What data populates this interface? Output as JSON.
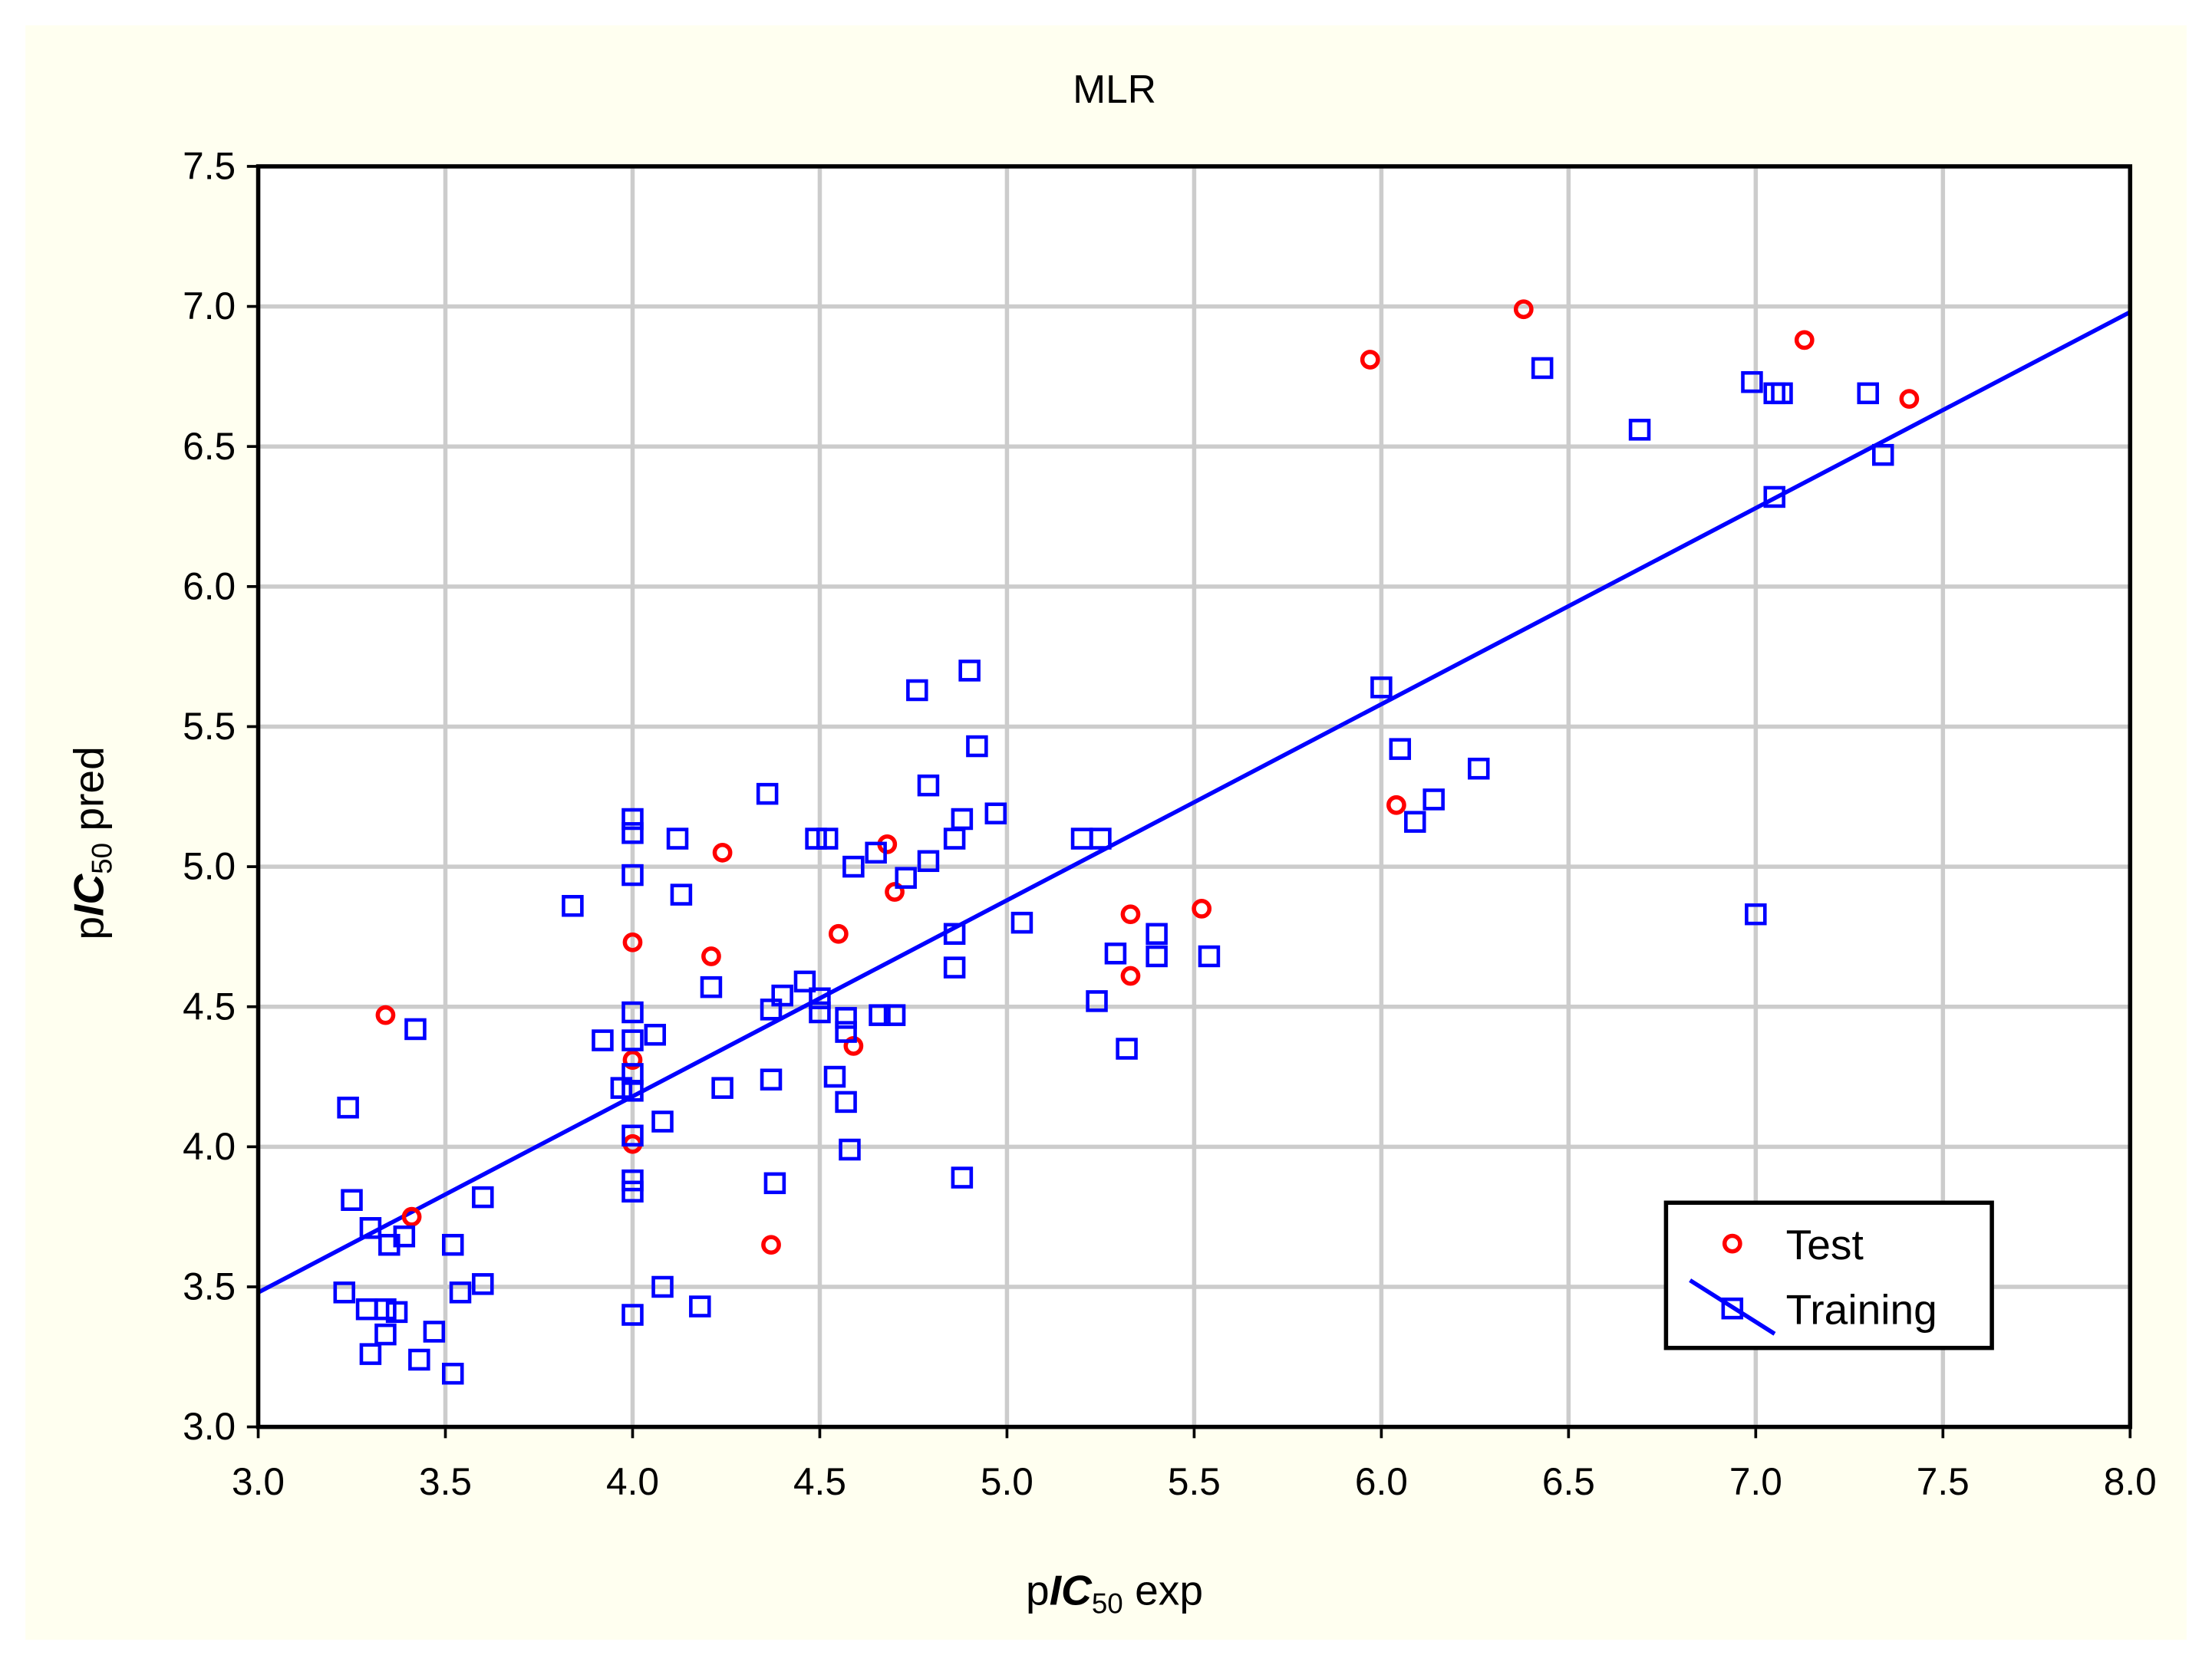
{
  "chart_data": {
    "type": "scatter",
    "title": "MLR",
    "x_label": {
      "prefix": "p",
      "italic": "IC",
      "sub": "50",
      "suffix": " exp"
    },
    "y_label": {
      "prefix": "p",
      "italic": "IC",
      "sub": "50",
      "suffix": " pred"
    },
    "xlim": [
      3.0,
      8.0
    ],
    "ylim": [
      3.0,
      7.5
    ],
    "xticks": [
      {
        "value": 3,
        "label": "3.0"
      },
      3.5,
      {
        "value": 4,
        "label": "4.0"
      },
      4.5,
      {
        "value": 5,
        "label": "5.0"
      },
      5.5,
      {
        "value": 6,
        "label": "6.0"
      },
      6.5,
      {
        "value": 7,
        "label": "7.0"
      },
      7.5,
      {
        "value": 8,
        "label": "8.0"
      }
    ],
    "yticks": [
      {
        "value": 3,
        "label": "3.0"
      },
      3.5,
      {
        "value": 4,
        "label": "4.0"
      },
      4.5,
      {
        "value": 5,
        "label": "5.0"
      },
      5.5,
      {
        "value": 6,
        "label": "6.0"
      },
      6.5,
      {
        "value": 7,
        "label": "7.0"
      },
      7.5
    ],
    "grid": true,
    "legend": "lower right",
    "series": [
      {
        "name": "Test",
        "color": "#ff0000",
        "marker": "circle",
        "x": [
          3.34,
          3.41,
          4.0,
          4.0,
          4.0,
          4.21,
          4.24,
          4.37,
          4.55,
          4.59,
          4.68,
          4.7,
          5.33,
          5.33,
          5.52,
          5.97,
          6.04,
          6.38,
          7.13,
          7.41
        ],
        "values": [
          4.47,
          3.75,
          4.73,
          4.31,
          4.01,
          4.68,
          5.05,
          3.65,
          4.76,
          4.36,
          5.08,
          4.91,
          4.83,
          4.61,
          4.85,
          6.81,
          5.22,
          6.99,
          6.88,
          6.67
        ]
      },
      {
        "name": "Training",
        "color": "#0000ff",
        "marker": "square",
        "x": [
          3.24,
          3.25,
          3.23,
          3.29,
          3.3,
          3.3,
          3.34,
          3.34,
          3.35,
          3.37,
          3.39,
          3.42,
          3.43,
          3.47,
          3.52,
          3.52,
          3.54,
          3.6,
          3.6,
          3.84,
          3.92,
          3.97,
          4.0,
          4.0,
          4.0,
          4.0,
          4.0,
          4.0,
          4.0,
          4.0,
          4.0,
          4.0,
          4.0,
          4.06,
          4.08,
          4.08,
          4.12,
          4.13,
          4.18,
          4.21,
          4.24,
          4.36,
          4.37,
          4.37,
          4.38,
          4.4,
          4.46,
          4.49,
          4.52,
          4.5,
          4.5,
          4.54,
          4.57,
          4.57,
          4.57,
          4.58,
          4.59,
          4.65,
          4.66,
          4.7,
          4.73,
          4.76,
          4.79,
          4.79,
          4.86,
          4.86,
          4.86,
          4.88,
          4.88,
          4.9,
          4.92,
          4.97,
          5.04,
          5.2,
          5.25,
          5.24,
          5.29,
          5.32,
          5.4,
          5.4,
          5.54,
          6.0,
          6.05,
          6.09,
          6.14,
          6.26,
          6.43,
          6.69,
          6.99,
          7.0,
          7.05,
          7.07,
          7.05,
          7.3,
          7.34
        ],
        "values": [
          4.14,
          3.81,
          3.48,
          3.42,
          3.71,
          3.26,
          3.33,
          3.42,
          3.65,
          3.41,
          3.68,
          4.42,
          3.24,
          3.34,
          3.65,
          3.19,
          3.48,
          3.51,
          3.82,
          4.86,
          4.38,
          4.21,
          5.17,
          5.12,
          4.97,
          4.48,
          4.38,
          4.26,
          4.2,
          4.04,
          3.88,
          3.84,
          3.4,
          4.4,
          4.09,
          3.5,
          5.1,
          4.9,
          3.43,
          4.57,
          4.21,
          5.26,
          4.49,
          4.24,
          3.87,
          4.54,
          4.59,
          5.1,
          5.1,
          4.53,
          4.48,
          4.25,
          4.46,
          4.41,
          4.16,
          3.99,
          5.0,
          5.05,
          4.47,
          4.47,
          4.96,
          5.63,
          5.29,
          5.02,
          5.1,
          4.76,
          4.64,
          5.17,
          3.89,
          5.7,
          5.43,
          5.19,
          4.8,
          5.1,
          5.1,
          4.52,
          4.69,
          4.35,
          4.76,
          4.68,
          4.68,
          5.64,
          5.42,
          5.16,
          5.24,
          5.35,
          6.78,
          6.56,
          6.73,
          4.83,
          6.69,
          6.69,
          6.32,
          6.69,
          6.47
        ],
        "fit_x": [
          3.0,
          8.0
        ],
        "fit_y": [
          3.48,
          6.98
        ]
      }
    ]
  }
}
